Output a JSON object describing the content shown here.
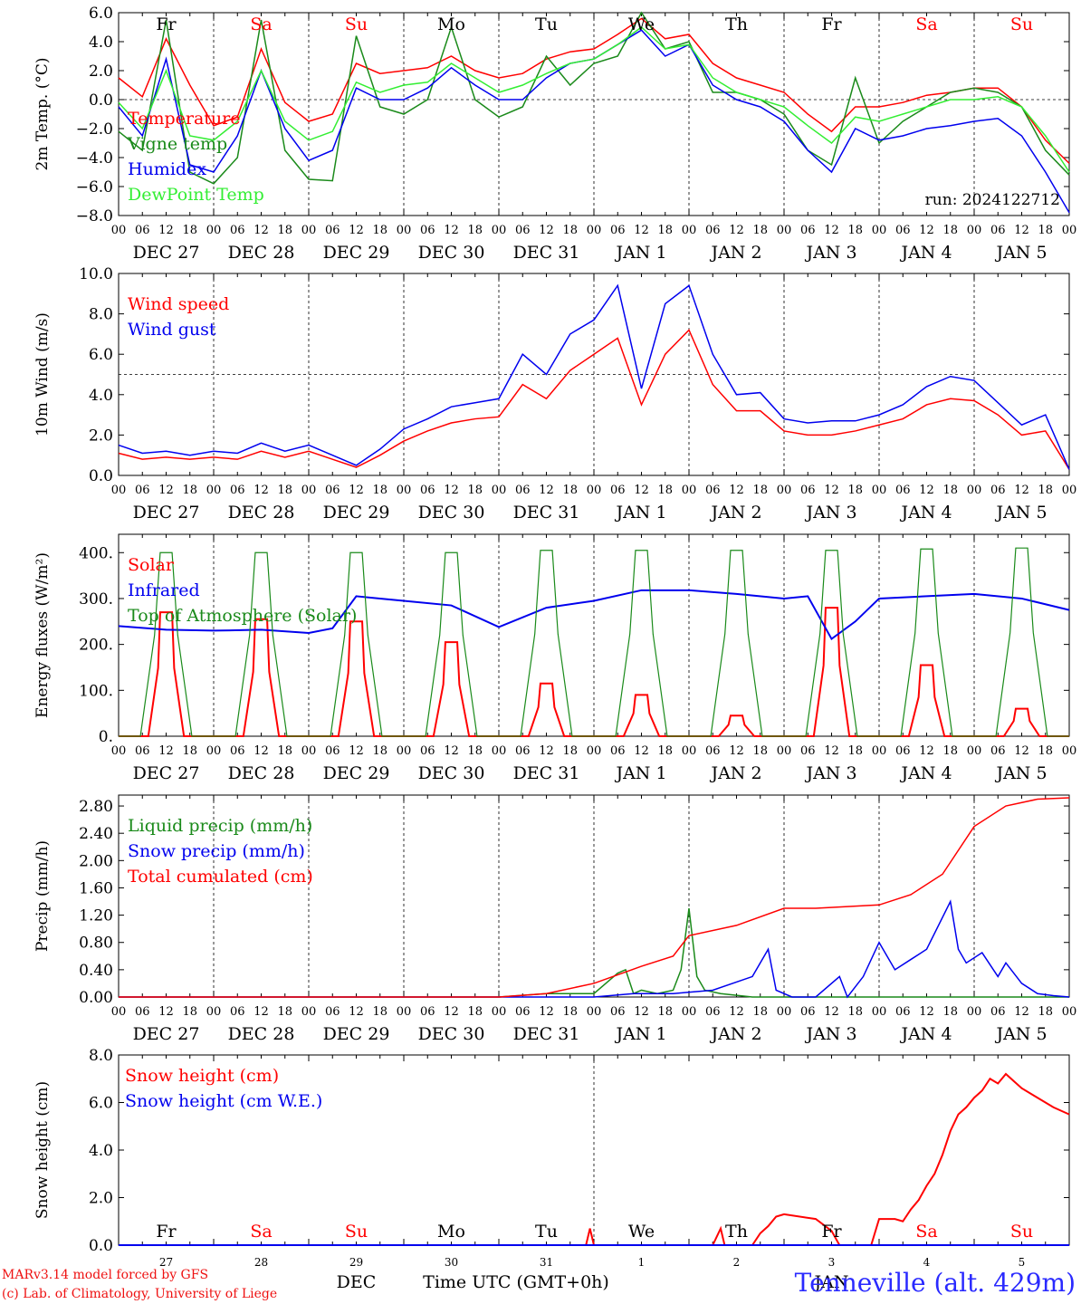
{
  "colors": {
    "red": "#ff0000",
    "green": "#1a8a1a",
    "blue": "#0000ee",
    "lightgreen": "#33ee33"
  },
  "footer": {
    "model": "MARv3.14 model forced by GFS",
    "copyright": "(c) Lab. of Climatology, University of Liege",
    "month": "DEC",
    "month2": "JAN",
    "xlabel": "Time UTC (GMT+0h)",
    "station": "Tenneville (alt. 429m)"
  },
  "time_axis": {
    "hour_ticks": [
      "00",
      "06",
      "12",
      "18"
    ],
    "day_labels": [
      "DEC 27",
      "DEC 28",
      "DEC 29",
      "DEC 30",
      "DEC 31",
      "JAN  1",
      "JAN  2",
      "JAN  3",
      "JAN  4",
      "JAN  5"
    ],
    "weekdays": [
      "Fr",
      "Sa",
      "Su",
      "Mo",
      "Tu",
      "We",
      "Th",
      "Fr",
      "Sa",
      "Su"
    ],
    "weekday_colors": [
      "#000000",
      "#ff0000",
      "#ff0000",
      "#000000",
      "#000000",
      "#000000",
      "#000000",
      "#000000",
      "#ff0000",
      "#ff0000"
    ],
    "day_numbers": [
      "27",
      "28",
      "29",
      "30",
      "31",
      "1",
      "2",
      "3",
      "4",
      "5"
    ]
  },
  "chart_data": [
    {
      "type": "line",
      "ylabel": "2m Temp. (°C)",
      "ylim": [
        -8,
        6
      ],
      "yticks": [
        "6.0",
        "4.0",
        "2.0",
        "0.0",
        "−2.0",
        "−4.0",
        "−6.0",
        "−8.0"
      ],
      "ytick_values": [
        6,
        4,
        2,
        0,
        -2,
        -4,
        -6,
        -8
      ],
      "reference_line": 0,
      "annotation": "run: 2024122712",
      "x": [
        0,
        6,
        12,
        18,
        24,
        30,
        36,
        42,
        48,
        54,
        60,
        66,
        72,
        78,
        84,
        90,
        96,
        102,
        108,
        114,
        120,
        126,
        132,
        138,
        144,
        150,
        156,
        162,
        168,
        174,
        180,
        186,
        192,
        198,
        204,
        210,
        216,
        222,
        228,
        234,
        240
      ],
      "series": [
        {
          "name": "Temperature",
          "color": "#ff0000",
          "values": [
            1.5,
            0.2,
            4.2,
            1.0,
            -1.8,
            -1.2,
            3.5,
            -0.2,
            -1.5,
            -1.0,
            2.5,
            1.8,
            2.0,
            2.2,
            3.0,
            2.0,
            1.5,
            1.8,
            2.8,
            3.3,
            3.5,
            4.5,
            5.6,
            4.2,
            4.5,
            2.5,
            1.5,
            1.0,
            0.5,
            -1.0,
            -2.2,
            -0.5,
            -0.5,
            -0.2,
            0.3,
            0.5,
            0.8,
            0.8,
            -0.5,
            -2.8,
            -4.4
          ]
        },
        {
          "name": "Vigne temp",
          "color": "#1a8a1a",
          "values": [
            -2.2,
            -3.5,
            5.5,
            -5.0,
            -5.8,
            -4.0,
            5.5,
            -3.5,
            -5.5,
            -5.6,
            4.4,
            -0.5,
            -1.0,
            0.0,
            5.0,
            0.0,
            -1.2,
            -0.5,
            3.0,
            1.0,
            2.5,
            3.0,
            6.0,
            3.5,
            4.0,
            0.5,
            0.5,
            0.0,
            -1.0,
            -3.5,
            -4.5,
            1.5,
            -3.0,
            -1.5,
            -0.5,
            0.5,
            0.8,
            0.5,
            -0.5,
            -3.5,
            -5.2
          ]
        },
        {
          "name": "Humidex",
          "color": "#0000ee",
          "values": [
            -0.5,
            -2.5,
            2.8,
            -4.5,
            -5.0,
            -2.5,
            2.0,
            -2.0,
            -4.2,
            -3.5,
            0.8,
            0.0,
            0.0,
            0.8,
            2.2,
            1.0,
            0.0,
            0.0,
            1.5,
            2.5,
            2.8,
            3.8,
            4.8,
            3.0,
            3.8,
            1.0,
            0.0,
            -0.5,
            -1.5,
            -3.5,
            -5.0,
            -2.0,
            -2.8,
            -2.5,
            -2.0,
            -1.8,
            -1.5,
            -1.3,
            -2.5,
            -5.0,
            -7.8
          ]
        },
        {
          "name": "DewPoint Temp",
          "color": "#33ee33",
          "values": [
            -0.2,
            -2.0,
            2.0,
            -2.5,
            -2.8,
            -1.5,
            2.0,
            -1.5,
            -2.8,
            -2.2,
            1.2,
            0.5,
            1.0,
            1.2,
            2.5,
            1.5,
            0.5,
            1.0,
            1.8,
            2.5,
            2.8,
            3.8,
            5.0,
            3.5,
            3.8,
            1.5,
            0.5,
            0.0,
            -0.5,
            -1.8,
            -3.0,
            -1.2,
            -1.5,
            -1.0,
            -0.5,
            0.0,
            0.0,
            0.2,
            -0.5,
            -2.5,
            -5.0
          ]
        }
      ]
    },
    {
      "type": "line",
      "ylabel": "10m Wind (m/s)",
      "ylim": [
        0,
        10
      ],
      "yticks": [
        "10.0",
        "8.0",
        "6.0",
        "4.0",
        "2.0",
        "0.0"
      ],
      "ytick_values": [
        10,
        8,
        6,
        4,
        2,
        0
      ],
      "reference_line": 5,
      "x": [
        0,
        6,
        12,
        18,
        24,
        30,
        36,
        42,
        48,
        54,
        60,
        66,
        72,
        78,
        84,
        90,
        96,
        102,
        108,
        114,
        120,
        126,
        132,
        138,
        144,
        150,
        156,
        162,
        168,
        174,
        180,
        186,
        192,
        198,
        204,
        210,
        216,
        222,
        228,
        234,
        240
      ],
      "series": [
        {
          "name": "Wind speed",
          "color": "#ff0000",
          "values": [
            1.1,
            0.8,
            0.9,
            0.8,
            0.9,
            0.8,
            1.2,
            0.9,
            1.2,
            0.8,
            0.4,
            1.0,
            1.7,
            2.2,
            2.6,
            2.8,
            2.9,
            4.5,
            3.8,
            5.2,
            6.0,
            6.8,
            3.5,
            6.0,
            7.2,
            4.5,
            3.2,
            3.2,
            2.2,
            2.0,
            2.0,
            2.2,
            2.5,
            2.8,
            3.5,
            3.8,
            3.7,
            3.0,
            2.0,
            2.2,
            0.3
          ]
        },
        {
          "name": "Wind gust",
          "color": "#0000ee",
          "values": [
            1.5,
            1.1,
            1.2,
            1.0,
            1.2,
            1.1,
            1.6,
            1.2,
            1.5,
            1.0,
            0.5,
            1.3,
            2.3,
            2.8,
            3.4,
            3.6,
            3.8,
            6.0,
            5.0,
            7.0,
            7.7,
            9.4,
            4.3,
            8.5,
            9.4,
            6.0,
            4.0,
            4.1,
            2.8,
            2.6,
            2.7,
            2.7,
            3.0,
            3.5,
            4.4,
            4.9,
            4.7,
            3.6,
            2.5,
            3.0,
            0.3
          ]
        }
      ]
    },
    {
      "type": "line",
      "ylabel": "Energy fluxes (W/m²)",
      "ylim": [
        0,
        440
      ],
      "yticks": [
        "400.",
        "300.",
        "200.",
        "100.",
        "0."
      ],
      "ytick_values": [
        400,
        300,
        200,
        100,
        0
      ],
      "series": [
        {
          "name": "Solar",
          "color": "#ff0000",
          "day_peaks": [
            270,
            255,
            250,
            205,
            115,
            90,
            45,
            280,
            155,
            60
          ]
        },
        {
          "name": "Infrared",
          "color": "#0000ee",
          "x": [
            0,
            12,
            24,
            36,
            48,
            54,
            60,
            66,
            72,
            84,
            96,
            108,
            120,
            132,
            144,
            156,
            168,
            174,
            180,
            186,
            192,
            204,
            216,
            228,
            240
          ],
          "values": [
            240,
            232,
            230,
            232,
            225,
            235,
            305,
            300,
            295,
            285,
            238,
            280,
            295,
            318,
            318,
            310,
            300,
            305,
            212,
            250,
            300,
            305,
            310,
            300,
            275
          ]
        },
        {
          "name": "Top of Atmosphere (Solar)",
          "color": "#1a8a1a",
          "day_peaks": [
            400,
            400,
            400,
            400,
            405,
            405,
            405,
            405,
            408,
            410
          ]
        }
      ]
    },
    {
      "type": "line",
      "ylabel": "Precip (mm/h)",
      "ylim": [
        0,
        2.96
      ],
      "yticks": [
        "2.80",
        "2.40",
        "2.00",
        "1.60",
        "1.20",
        "0.80",
        "0.40",
        "0.00"
      ],
      "ytick_values": [
        2.8,
        2.4,
        2.0,
        1.6,
        1.2,
        0.8,
        0.4,
        0.0
      ],
      "series": [
        {
          "name": "Liquid precip (mm/h)",
          "color": "#1a8a1a",
          "x": [
            0,
            96,
            108,
            120,
            124,
            126,
            128,
            130,
            132,
            136,
            140,
            142,
            144,
            146,
            148,
            152,
            160,
            168,
            240
          ],
          "values": [
            0,
            0,
            0.05,
            0.05,
            0.25,
            0.35,
            0.4,
            0.05,
            0.1,
            0.05,
            0.1,
            0.4,
            1.3,
            0.3,
            0.1,
            0.05,
            0,
            0,
            0
          ]
        },
        {
          "name": "Snow precip (mm/h)",
          "color": "#0000ee",
          "x": [
            0,
            120,
            130,
            140,
            150,
            160,
            164,
            166,
            170,
            176,
            182,
            184,
            188,
            192,
            196,
            200,
            204,
            210,
            212,
            214,
            218,
            222,
            224,
            228,
            232,
            236,
            240
          ],
          "values": [
            0,
            0,
            0.05,
            0.05,
            0.1,
            0.3,
            0.7,
            0.1,
            0,
            0,
            0.3,
            0,
            0.3,
            0.8,
            0.4,
            0.55,
            0.7,
            1.4,
            0.7,
            0.5,
            0.65,
            0.3,
            0.5,
            0.2,
            0.05,
            0.02,
            0
          ]
        },
        {
          "name": "Total cumulated (cm)",
          "color": "#ff0000",
          "x": [
            0,
            96,
            108,
            120,
            132,
            140,
            144,
            156,
            168,
            176,
            192,
            200,
            208,
            216,
            224,
            232,
            240
          ],
          "values": [
            0,
            0,
            0.05,
            0.2,
            0.45,
            0.6,
            0.9,
            1.05,
            1.3,
            1.3,
            1.35,
            1.5,
            1.8,
            2.5,
            2.8,
            2.9,
            2.92
          ]
        }
      ]
    },
    {
      "type": "line",
      "ylabel": "Snow height (cm)",
      "ylim": [
        0,
        8
      ],
      "yticks": [
        "8.0",
        "6.0",
        "4.0",
        "2.0",
        "0.0"
      ],
      "ytick_values": [
        8,
        6,
        4,
        2,
        0
      ],
      "series": [
        {
          "name": "Snow height (cm)",
          "color": "#ff0000",
          "x": [
            0,
            118,
            119,
            120,
            150,
            152,
            153,
            160,
            162,
            164,
            166,
            168,
            176,
            180,
            182,
            184,
            190,
            192,
            196,
            198,
            200,
            202,
            204,
            206,
            208,
            210,
            212,
            214,
            216,
            218,
            220,
            222,
            224,
            226,
            228,
            232,
            236,
            240
          ],
          "values": [
            0,
            0,
            0.7,
            0,
            0,
            0.7,
            0,
            0,
            0.5,
            0.8,
            1.2,
            1.3,
            1.1,
            0.6,
            0,
            0,
            0,
            1.1,
            1.1,
            1.0,
            1.5,
            1.9,
            2.5,
            3.0,
            3.8,
            4.8,
            5.5,
            5.8,
            6.2,
            6.5,
            7.0,
            6.8,
            7.2,
            6.9,
            6.6,
            6.2,
            5.8,
            5.5
          ]
        },
        {
          "name": "Snow height (cm W.E.)",
          "color": "#0000ee",
          "x": [
            0,
            240
          ],
          "values": [
            0,
            0
          ]
        }
      ]
    }
  ]
}
